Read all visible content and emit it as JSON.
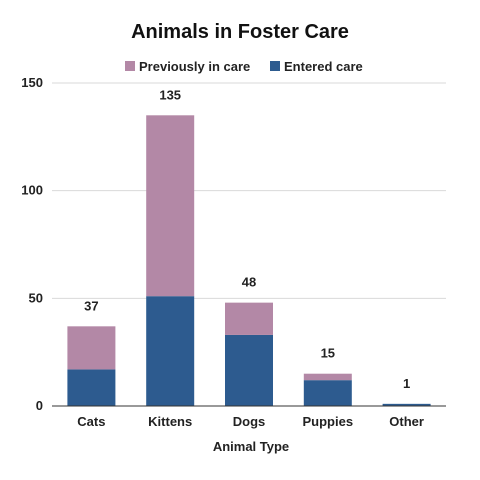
{
  "chart_data": {
    "type": "bar",
    "stacked": true,
    "title": "Animals in Foster Care",
    "xlabel": "Animal Type",
    "ylabel": "",
    "categories": [
      "Cats",
      "Kittens",
      "Dogs",
      "Puppies",
      "Other"
    ],
    "series": [
      {
        "name": "Entered care",
        "color": "#2d5b8f",
        "values": [
          17,
          51,
          33,
          12,
          1
        ]
      },
      {
        "name": "Previously in care",
        "color": "#b388a6",
        "values": [
          20,
          84,
          15,
          3,
          0
        ]
      }
    ],
    "totals": [
      "37",
      "135",
      "48",
      "15",
      "1"
    ],
    "ylim": [
      0,
      150
    ],
    "yticks": [
      "0",
      "50",
      "100",
      "150"
    ],
    "grid": true,
    "legend_position": "top"
  }
}
